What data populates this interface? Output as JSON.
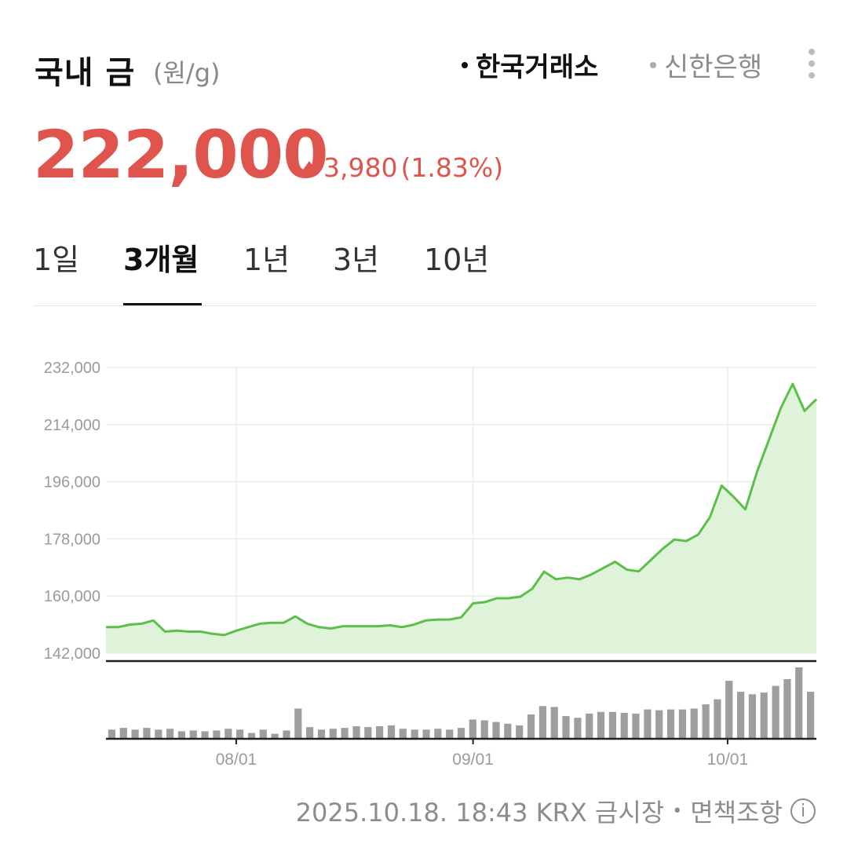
{
  "header": {
    "title": "국내 금",
    "unit": "(원/g)",
    "sources": [
      {
        "label": "한국거래소",
        "active": true
      },
      {
        "label": "신한은행",
        "active": false
      }
    ]
  },
  "quote": {
    "price": "222,000",
    "change": "3,980",
    "change_pct": "(1.83%)",
    "direction": "up",
    "color": "#e0544e"
  },
  "tabs": [
    {
      "label": "1일",
      "active": false
    },
    {
      "label": "3개월",
      "active": true
    },
    {
      "label": "1년",
      "active": false
    },
    {
      "label": "3년",
      "active": false
    },
    {
      "label": "10년",
      "active": false
    }
  ],
  "chart_data": {
    "type": "area",
    "price_series": {
      "color": "#5bbf4a",
      "fill": "#dff3da",
      "values": [
        150200,
        150200,
        151000,
        151300,
        152300,
        148800,
        149100,
        148800,
        148800,
        148100,
        147700,
        149100,
        150200,
        151300,
        151600,
        151600,
        153600,
        151300,
        150200,
        149800,
        150500,
        150500,
        150500,
        150500,
        150800,
        150200,
        151000,
        152300,
        152600,
        152600,
        153300,
        157700,
        158100,
        159300,
        159300,
        159800,
        162300,
        167700,
        165300,
        165800,
        165300,
        166800,
        168800,
        170800,
        168300,
        167800,
        171300,
        174800,
        177800,
        177300,
        179300,
        184800,
        194800,
        191300,
        187300,
        199300,
        209300,
        219300,
        226800,
        218300,
        222000
      ]
    },
    "volume_series": {
      "color": "#9e9e9e",
      "values": [
        10,
        12,
        10,
        12,
        10,
        11,
        8,
        9,
        8,
        9,
        11,
        10,
        6,
        10,
        5,
        9,
        35,
        13,
        10,
        11,
        12,
        14,
        13,
        14,
        15,
        11,
        10,
        10,
        11,
        10,
        12,
        22,
        21,
        19,
        17,
        15,
        28,
        38,
        37,
        26,
        24,
        29,
        31,
        31,
        30,
        29,
        34,
        33,
        34,
        34,
        35,
        40,
        46,
        68,
        55,
        52,
        54,
        62,
        70,
        84,
        55
      ]
    },
    "y_ticks": [
      "232,000",
      "214,000",
      "196,000",
      "178,000",
      "160,000",
      "142,000"
    ],
    "ylim": [
      142000,
      232000
    ],
    "x_ticks": [
      {
        "label": "08/01",
        "index": 11
      },
      {
        "label": "09/01",
        "index": 31
      },
      {
        "label": "10/01",
        "index": 52.5
      }
    ],
    "grid": true
  },
  "footer": {
    "timestamp": "2025.10.18. 18:43 KRX 금시장",
    "separator": "•",
    "disclaimer": "면책조항",
    "info_icon": "i"
  }
}
